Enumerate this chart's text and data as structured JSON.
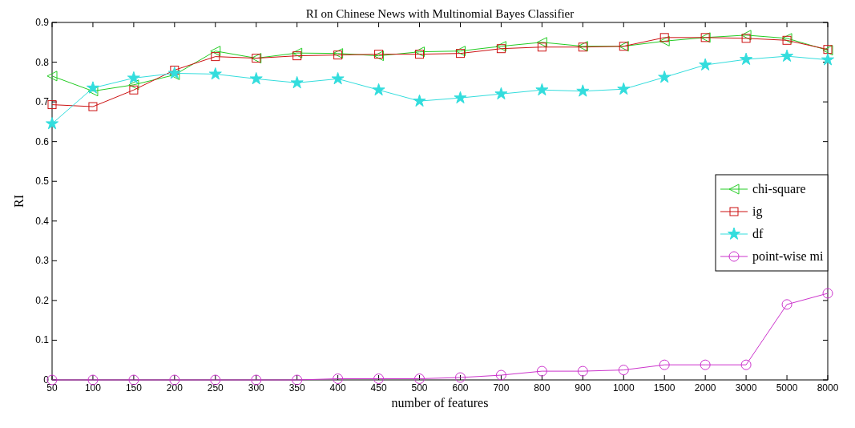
{
  "chart_data": {
    "type": "line",
    "title": "RI on Chinese News with Multinomial Bayes Classifier",
    "xlabel": "number of features",
    "ylabel": "RI",
    "categories": [
      "50",
      "100",
      "150",
      "200",
      "250",
      "300",
      "350",
      "400",
      "450",
      "500",
      "600",
      "700",
      "800",
      "900",
      "1000",
      "1500",
      "2000",
      "3000",
      "5000",
      "8000"
    ],
    "series": [
      {
        "name": "chi-square",
        "color": "#22cc22",
        "marker": "triangle",
        "values": [
          0.765,
          0.727,
          0.743,
          0.768,
          0.828,
          0.81,
          0.823,
          0.822,
          0.816,
          0.826,
          0.828,
          0.84,
          0.85,
          0.84,
          0.84,
          0.853,
          0.862,
          0.868,
          0.86,
          0.83
        ]
      },
      {
        "name": "ig",
        "color": "#cc1111",
        "marker": "square",
        "values": [
          0.693,
          0.688,
          0.73,
          0.78,
          0.814,
          0.81,
          0.816,
          0.818,
          0.82,
          0.82,
          0.822,
          0.834,
          0.838,
          0.838,
          0.84,
          0.862,
          0.862,
          0.86,
          0.855,
          0.832
        ]
      },
      {
        "name": "df",
        "color": "#33dddd",
        "marker": "star",
        "values": [
          0.645,
          0.735,
          0.76,
          0.772,
          0.77,
          0.758,
          0.748,
          0.758,
          0.73,
          0.702,
          0.71,
          0.72,
          0.73,
          0.727,
          0.732,
          0.762,
          0.793,
          0.807,
          0.815,
          0.806
        ]
      },
      {
        "name": "point-wise mi",
        "color": "#cc33cc",
        "marker": "circle",
        "values": [
          0,
          0,
          0,
          0,
          0,
          0,
          0,
          0.003,
          0.003,
          0.003,
          0.006,
          0.012,
          0.022,
          0.022,
          0.025,
          0.038,
          0.038,
          0.038,
          0.19,
          0.218
        ]
      }
    ],
    "ylim": [
      0,
      0.9
    ],
    "yticks": [
      0,
      0.1,
      0.2,
      0.3,
      0.4,
      0.5,
      0.6,
      0.7,
      0.8,
      0.9
    ],
    "grid": false,
    "legend": "right",
    "line_style": "solid"
  }
}
